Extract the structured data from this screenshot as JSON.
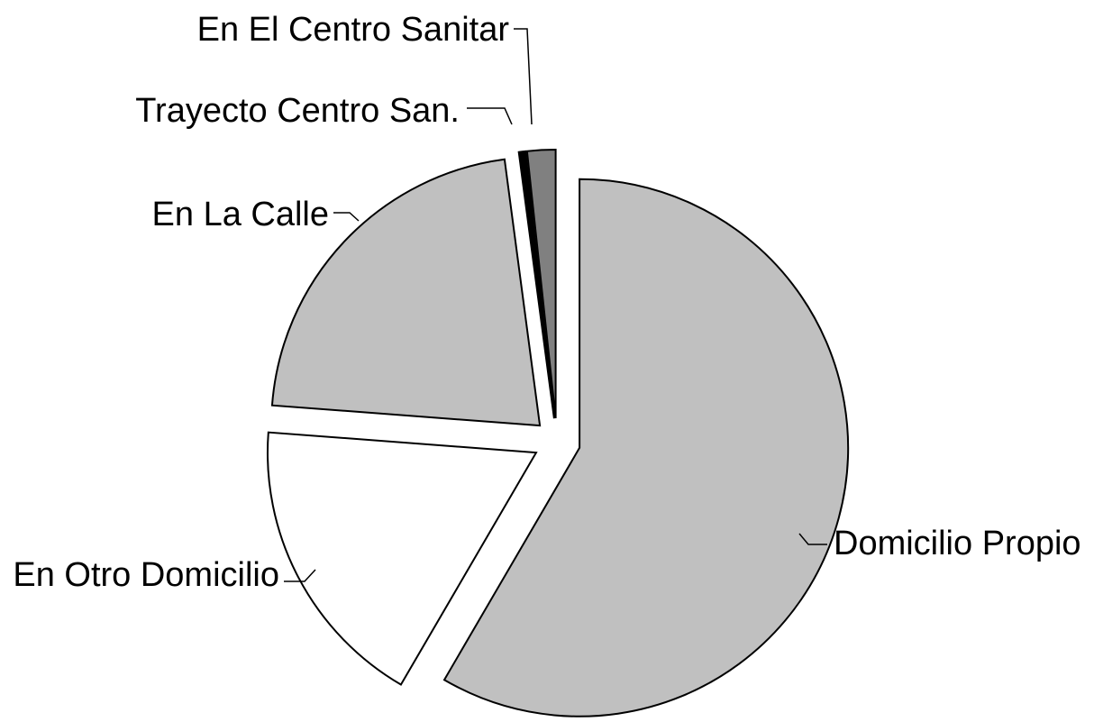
{
  "chart_data": {
    "type": "pie",
    "categories": [
      "Domicilio Propio",
      "En Otro Domicilio",
      "En La Calle",
      "Trayecto Centro San.",
      "En El Centro Sanitar"
    ],
    "values": [
      58.4,
      17.8,
      21.7,
      0.4,
      1.7
    ],
    "colors": [
      "#c0c0c0",
      "#ffffff",
      "#c0c0c0",
      "#000000",
      "#808080"
    ]
  }
}
